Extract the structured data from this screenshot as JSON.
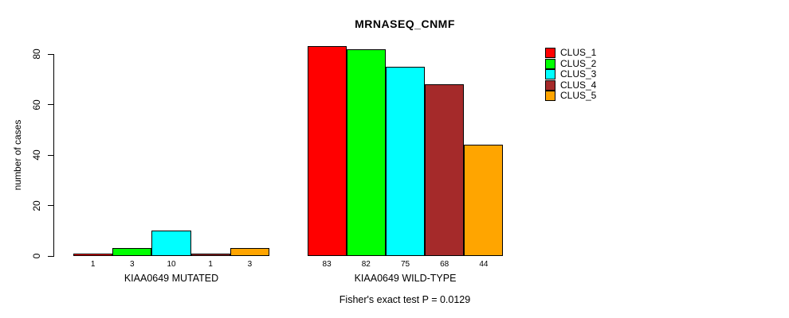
{
  "chart_data": {
    "type": "bar",
    "title": "MRNASEQ_CNMF",
    "subtitle": "Fisher's exact test P = 0.0129",
    "ylabel": "number of cases",
    "xlabel": "",
    "yticks": [
      0,
      20,
      40,
      60,
      80
    ],
    "ylim": [
      0,
      83
    ],
    "grid": false,
    "legend_position": "right",
    "categories": [
      "KIAA0649 MUTATED",
      "KIAA0649 WILD-TYPE"
    ],
    "series": [
      {
        "name": "CLUS_1",
        "color": "#ff0000",
        "values": [
          1,
          83
        ]
      },
      {
        "name": "CLUS_2",
        "color": "#00ff00",
        "values": [
          3,
          82
        ]
      },
      {
        "name": "CLUS_3",
        "color": "#00ffff",
        "values": [
          10,
          75
        ]
      },
      {
        "name": "CLUS_4",
        "color": "#a52a2a",
        "values": [
          1,
          68
        ]
      },
      {
        "name": "CLUS_5",
        "color": "#ffa500",
        "values": [
          3,
          44
        ]
      }
    ],
    "bar_value_labels": [
      [
        1,
        3,
        10,
        1,
        3
      ],
      [
        83,
        82,
        75,
        68,
        44
      ]
    ]
  }
}
